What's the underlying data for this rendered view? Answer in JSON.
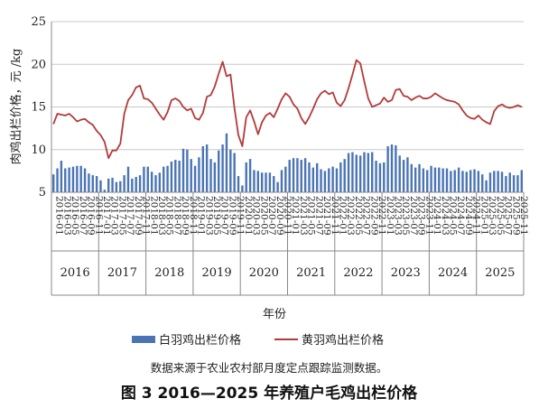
{
  "chart_data": {
    "type": "bar",
    "ylabel": "肉鸡出栏价格，元 /kg",
    "xlabel": "年份",
    "ylim": [
      5,
      25
    ],
    "yticks": [
      5,
      10,
      15,
      20,
      25
    ],
    "grid": true,
    "legend_position": "bottom",
    "years": [
      "2016",
      "2017",
      "2018",
      "2019",
      "2020",
      "2021",
      "2022",
      "2023",
      "2024",
      "2025"
    ],
    "tick_labels": [
      "2016-01",
      "2016-03",
      "2016-05",
      "2016-07",
      "2016-09",
      "2016-11",
      "2017-01",
      "2017-03",
      "2017-05",
      "2017-07",
      "2017-09",
      "2017-11",
      "2018-01",
      "2018-03",
      "2018-05",
      "2018-07",
      "2018-09",
      "2018-11",
      "2019-01",
      "2019-03",
      "2019-05",
      "2019-07",
      "2019-09",
      "2019-11",
      "2020-01",
      "2020-03",
      "2020-05",
      "2020-07",
      "2020-09",
      "2020-11",
      "2021-01",
      "2021-03",
      "2021-05",
      "2021-07",
      "2021-09",
      "2021-11",
      "2022-01",
      "2022-03",
      "2022-05",
      "2022-07",
      "2022-09",
      "2022-11",
      "2023-01",
      "2023-03",
      "2023-05",
      "2023-07",
      "2023-09",
      "2023-11",
      "2024-01",
      "2024-03",
      "2024-05",
      "2024-07",
      "2024-09",
      "2024-11",
      "2025-01",
      "2025-03",
      "2025-05",
      "2025-07",
      "2025-09",
      "2025-11"
    ],
    "series": [
      {
        "name": "白羽鸡出栏价格",
        "type": "bar",
        "color": "#4a74b4",
        "values": [
          7.1,
          7.8,
          8.7,
          7.8,
          7.9,
          8.0,
          8.1,
          8.1,
          7.8,
          7.2,
          7.0,
          6.9,
          6.4,
          5.3,
          6.6,
          6.7,
          6.2,
          6.3,
          7.0,
          8.0,
          6.6,
          6.8,
          7.0,
          8.0,
          8.0,
          7.4,
          7.0,
          7.3,
          8.0,
          8.1,
          8.6,
          8.8,
          8.7,
          10.1,
          10.0,
          8.9,
          8.1,
          9.1,
          10.4,
          10.6,
          8.9,
          8.5,
          9.9,
          10.6,
          11.9,
          10.0,
          9.6,
          6.9,
          5.8,
          8.5,
          8.9,
          7.6,
          7.5,
          7.3,
          7.3,
          7.3,
          6.9,
          6.2,
          7.6,
          8.0,
          8.8,
          9.0,
          9.0,
          8.8,
          9.0,
          8.5,
          7.9,
          8.4,
          7.7,
          7.5,
          7.8,
          8.0,
          7.8,
          8.5,
          8.9,
          9.6,
          9.7,
          9.4,
          9.3,
          9.7,
          9.6,
          9.7,
          8.7,
          8.4,
          8.5,
          10.4,
          10.6,
          10.5,
          9.3,
          8.8,
          9.1,
          8.3,
          7.9,
          8.3,
          7.8,
          7.6,
          8.1,
          7.9,
          7.9,
          7.8,
          7.8,
          7.5,
          7.6,
          7.9,
          7.5,
          7.4,
          7.6,
          7.7,
          7.5,
          7.1,
          6.4,
          7.3,
          7.5,
          7.5,
          7.4,
          6.9,
          7.3,
          7.0,
          7.0,
          7.6
        ]
      },
      {
        "name": "黄羽鸡出栏价格",
        "type": "line",
        "color": "#b43a3a",
        "values": [
          13.0,
          14.2,
          14.1,
          14.0,
          14.2,
          13.8,
          13.3,
          13.5,
          13.6,
          13.2,
          12.9,
          12.2,
          11.7,
          10.9,
          9.0,
          9.9,
          9.9,
          10.7,
          14.2,
          15.8,
          16.4,
          17.3,
          17.5,
          16.0,
          15.9,
          15.5,
          14.8,
          14.1,
          13.5,
          14.4,
          15.8,
          16.0,
          15.7,
          15.0,
          14.6,
          14.8,
          13.7,
          13.5,
          14.3,
          16.2,
          16.4,
          17.4,
          18.9,
          20.3,
          18.6,
          18.8,
          14.9,
          11.7,
          10.4,
          13.8,
          14.6,
          13.3,
          11.8,
          13.2,
          14.0,
          14.3,
          13.8,
          14.8,
          15.9,
          16.6,
          16.2,
          15.3,
          14.8,
          13.7,
          13.0,
          13.8,
          14.8,
          15.9,
          16.6,
          16.9,
          16.5,
          16.7,
          15.5,
          15.1,
          15.8,
          17.2,
          18.8,
          20.5,
          20.1,
          18.0,
          16.0,
          15.0,
          15.2,
          15.4,
          16.1,
          15.6,
          15.8,
          17.0,
          17.1,
          16.3,
          16.2,
          15.8,
          16.1,
          16.3,
          16.0,
          16.0,
          16.2,
          16.6,
          16.3,
          16.0,
          15.8,
          15.7,
          15.6,
          15.3,
          14.6,
          14.0,
          13.7,
          13.6,
          14.0,
          13.5,
          13.2,
          13.0,
          14.5,
          15.1,
          15.3,
          15.0,
          14.9,
          15.0,
          15.2,
          15.0
        ]
      }
    ],
    "legend": [
      "白羽鸡出栏价格",
      "黄羽鸡出栏价格"
    ],
    "note": "数据来源于农业农村部月度定点跟踪监测数据。",
    "title": "图 3  2016—2025 年养殖户毛鸡出栏价格"
  }
}
